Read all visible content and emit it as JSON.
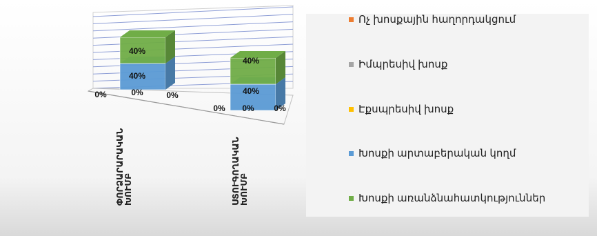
{
  "chart_data": {
    "type": "bar",
    "stacked": true,
    "three_d": true,
    "categories": [
      "ՓՈՐՁԱՐԱՐԱԿԱՆ ԽՈՒՄԲ",
      "ՍՏՈՒԳՈՂԱԿԱՆ ԽՈՒՄԲ"
    ],
    "category_lines": [
      [
        "ՓՈՐՁԱՐԱՐԱԿԱՆ",
        "ԽՈՒՄԲ"
      ],
      [
        "ՍՏՈՒԳՈՂԱԿԱՆ",
        "ԽՈՒՄԲ"
      ]
    ],
    "series": [
      {
        "name": "Ոչ խոսքային հաղորդակցում",
        "color": "#ed7d31",
        "values": [
          0,
          0
        ],
        "labels": [
          "0%",
          "0%"
        ]
      },
      {
        "name": "Իմպրեսիվ խոսք",
        "color": "#a5a5a5",
        "values": [
          0,
          0
        ],
        "labels": [
          "0%",
          "0%"
        ]
      },
      {
        "name": "Էքսպրեսիվ խոսք",
        "color": "#ffc000",
        "values": [
          0,
          0
        ],
        "labels": [
          "0%",
          "0%"
        ]
      },
      {
        "name": "Խոսքի արտաբերական կողմ",
        "color": "#5b9bd5",
        "values": [
          40,
          40
        ],
        "labels": [
          "40%",
          "40%"
        ]
      },
      {
        "name": "Խոսքի առանձնահատկություններ",
        "color": "#70ad47",
        "values": [
          40,
          40
        ],
        "labels": [
          "40%",
          "40%"
        ]
      }
    ],
    "ylim": [
      0,
      100
    ],
    "grid": true,
    "legend_position": "right"
  }
}
